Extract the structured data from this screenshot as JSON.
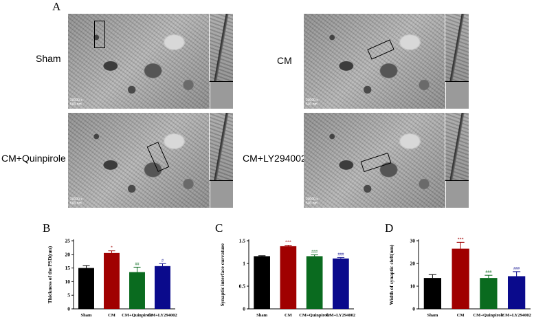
{
  "panel_labels": {
    "a": "A",
    "b": "B",
    "c": "C",
    "d": "D"
  },
  "micrographs": [
    {
      "label": "Sham",
      "scale_text": "20000 x\n500 nm",
      "scale_right": "500 nm"
    },
    {
      "label": "CM",
      "scale_text": "20000 x\n500 nm",
      "scale_right": "500 nm"
    },
    {
      "label": "CM+Quinpirole",
      "scale_text": "20000 x\n500 nm",
      "scale_right": "500 nm"
    },
    {
      "label": "CM+LY294002",
      "scale_text": "20000 x\n500 nm",
      "scale_right": "500 nm"
    }
  ],
  "colors": {
    "sham": "#000000",
    "cm": "#a00000",
    "quinpirole": "#0a6b1f",
    "ly": "#0a0a8c"
  },
  "chart_data": [
    {
      "type": "bar",
      "panel": "B",
      "categories": [
        "Sham",
        "CM",
        "CM+Quinpirole",
        "CM+LY294002"
      ],
      "values": [
        15.0,
        20.5,
        13.5,
        15.7
      ],
      "errors": [
        0.9,
        0.8,
        1.8,
        0.9
      ],
      "annotations": [
        "",
        "*",
        "##",
        "#"
      ],
      "ylabel": "Thickness of the PSD(nm)",
      "ylim": [
        0,
        25
      ],
      "yticks": [
        0,
        5,
        10,
        15,
        20,
        25
      ]
    },
    {
      "type": "bar",
      "panel": "C",
      "categories": [
        "Sham",
        "CM",
        "CM+Quinpirole",
        "CM+LY294002"
      ],
      "values": [
        1.16,
        1.38,
        1.16,
        1.11
      ],
      "errors": [
        0.01,
        0.02,
        0.03,
        0.02
      ],
      "annotations": [
        "",
        "***",
        "###",
        "###"
      ],
      "ylabel": "Synaptic interface curvature",
      "ylim": [
        0,
        1.5
      ],
      "yticks": [
        0.0,
        0.5,
        1.0,
        1.5
      ]
    },
    {
      "type": "bar",
      "panel": "D",
      "categories": [
        "Sham",
        "CM",
        "CM+Quinpirole",
        "CM+LY294002"
      ],
      "values": [
        13.6,
        26.5,
        13.6,
        14.4
      ],
      "errors": [
        1.5,
        2.8,
        1.2,
        2.0
      ],
      "annotations": [
        "",
        "***",
        "###",
        "###"
      ],
      "ylabel": "Width of synaptic cleft(nm)",
      "ylim": [
        0,
        30
      ],
      "yticks": [
        0,
        10,
        20,
        30
      ]
    }
  ]
}
